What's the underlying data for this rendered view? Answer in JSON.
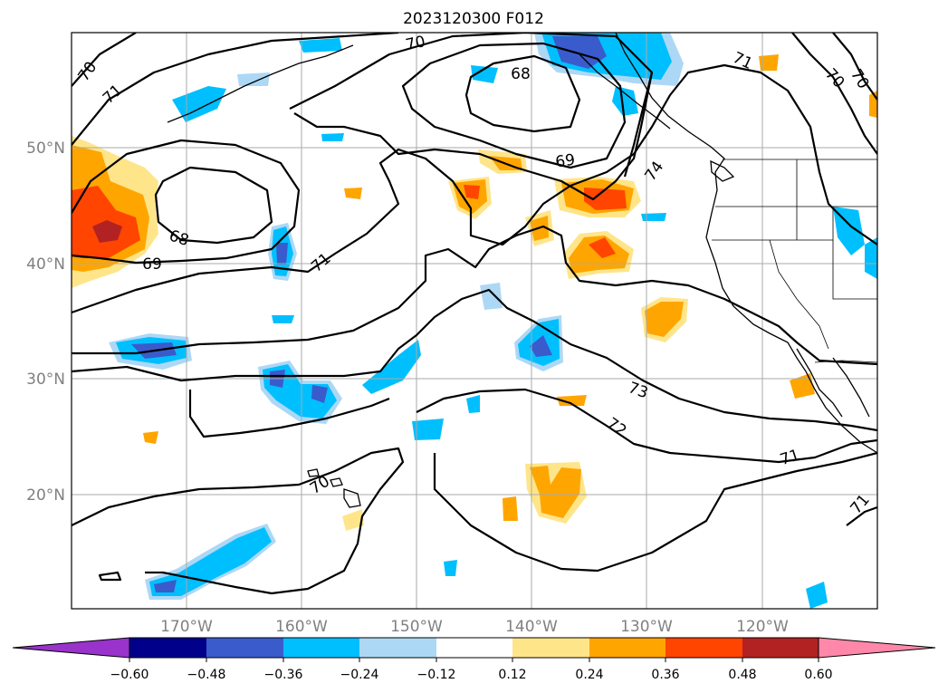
{
  "title": "2023120300 F012",
  "map": {
    "lat_labels": [
      "50°N",
      "40°N",
      "30°N",
      "20°N"
    ],
    "lon_labels": [
      "170°W",
      "160°W",
      "150°W",
      "140°W",
      "130°W",
      "120°W"
    ],
    "contour_labels": [
      "70",
      "71",
      "70",
      "68",
      "71",
      "70",
      "70",
      "69",
      "74",
      "68",
      "69",
      "71",
      "73",
      "72",
      "71",
      "70",
      "71"
    ]
  },
  "colorbar": {
    "tick_labels": [
      "−0.60",
      "−0.48",
      "−0.36",
      "−0.24",
      "−0.12",
      "0.12",
      "0.24",
      "0.36",
      "0.48",
      "0.60"
    ],
    "colors": {
      "under": "#9933cc",
      "bins": [
        "#00008b",
        "#3a5bcc",
        "#00bfff",
        "#add8f5",
        "#ffffff",
        "#ffe58a",
        "#ffa500",
        "#ff4500",
        "#b22222"
      ],
      "over": "#ff88aa"
    }
  },
  "colors": {
    "neg_light": "#add8f5",
    "neg_mid": "#00bfff",
    "neg_strong": "#3a5bcc",
    "pos_light": "#ffe58a",
    "pos_mid": "#ffa500",
    "pos_strong": "#ff4500",
    "pos_max": "#b22222",
    "contour": "#000000",
    "grid": "#aaaaaa"
  }
}
